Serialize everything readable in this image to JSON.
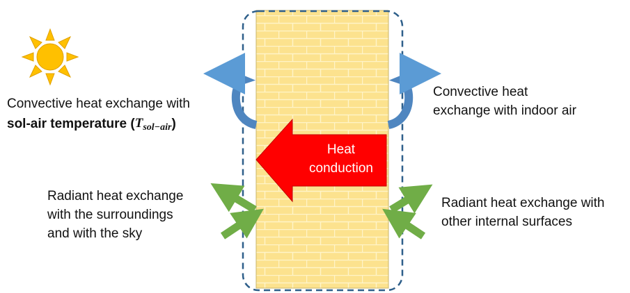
{
  "outer_convection": {
    "line1": "Convective heat exchange with",
    "bold": "sol-air temperature (",
    "symbol": "T",
    "subscript": "sol−air",
    "close": ")"
  },
  "inner_convection": {
    "lines": [
      "Convective heat",
      "exchange with indoor air"
    ]
  },
  "conduction": {
    "lines": [
      "Heat",
      "conduction"
    ]
  },
  "outer_radiation": {
    "lines": [
      "Radiant heat exchange",
      "with the surroundings",
      "and with the sky"
    ]
  },
  "inner_radiation": {
    "lines": [
      "Radiant heat exchange with",
      "other internal surfaces"
    ]
  }
}
